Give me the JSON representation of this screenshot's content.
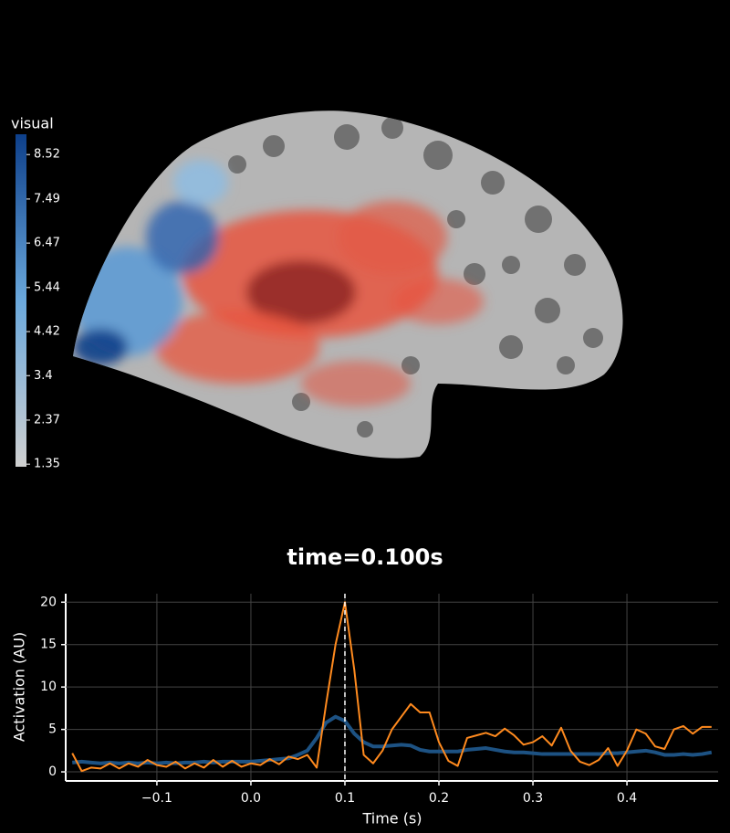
{
  "chart_data": [
    {
      "type": "colorbar",
      "label": "visual",
      "ylim": [
        1.29,
        8.99
      ],
      "yticks": [
        1.35,
        2.37,
        3.4,
        4.42,
        5.44,
        6.47,
        7.49,
        8.52
      ],
      "colors": [
        "#d0d0d0",
        "#6aa8dc",
        "#0d3f8a"
      ]
    },
    {
      "type": "line",
      "title": "time=0.100s",
      "x_label": "Time (s)",
      "y_label": "Activation (AU)",
      "x": [
        -0.19,
        -0.18,
        -0.17,
        -0.16,
        -0.15,
        -0.14,
        -0.13,
        -0.12,
        -0.11,
        -0.1,
        -0.09,
        -0.08,
        -0.07,
        -0.06,
        -0.05,
        -0.04,
        -0.03,
        -0.02,
        -0.01,
        0,
        0.01,
        0.02,
        0.03,
        0.04,
        0.05,
        0.06,
        0.07,
        0.08,
        0.09,
        0.1,
        0.11,
        0.12,
        0.13,
        0.14,
        0.15,
        0.16,
        0.17,
        0.18,
        0.19,
        0.2,
        0.21,
        0.22,
        0.23,
        0.24,
        0.25,
        0.26,
        0.27,
        0.28,
        0.29,
        0.3,
        0.31,
        0.32,
        0.33,
        0.34,
        0.35,
        0.36,
        0.37,
        0.38,
        0.39,
        0.4,
        0.41,
        0.42,
        0.43,
        0.44,
        0.45,
        0.46,
        0.47,
        0.48,
        0.49
      ],
      "series": [
        {
          "color": "#1d5283",
          "width": 4,
          "values": [
            1.1,
            1.2,
            1.1,
            1.0,
            1.1,
            1.0,
            1.1,
            1.0,
            1.1,
            1.0,
            1.1,
            1.0,
            1.1,
            1.1,
            1.2,
            1.1,
            1.2,
            1.2,
            1.2,
            1.2,
            1.3,
            1.4,
            1.5,
            1.6,
            2.0,
            2.5,
            4.0,
            5.8,
            6.5,
            6.0,
            4.5,
            3.5,
            3.0,
            3.0,
            3.1,
            3.2,
            3.1,
            2.6,
            2.4,
            2.4,
            2.4,
            2.4,
            2.6,
            2.7,
            2.8,
            2.6,
            2.4,
            2.3,
            2.3,
            2.2,
            2.1,
            2.1,
            2.1,
            2.1,
            2.1,
            2.1,
            2.1,
            2.2,
            2.2,
            2.3,
            2.4,
            2.5,
            2.3,
            2.0,
            2.0,
            2.1,
            2.0,
            2.1,
            2.3
          ]
        },
        {
          "color": "#ff8a1e",
          "width": 2,
          "values": [
            2.2,
            0.1,
            0.5,
            0.4,
            1.0,
            0.4,
            1.0,
            0.6,
            1.4,
            0.8,
            0.6,
            1.2,
            0.4,
            1.0,
            0.5,
            1.4,
            0.6,
            1.3,
            0.6,
            1.0,
            0.8,
            1.5,
            0.9,
            1.8,
            1.5,
            2.0,
            0.5,
            8.0,
            15.0,
            20.0,
            12.0,
            2.0,
            1.0,
            2.5,
            5.0,
            6.5,
            8.0,
            7.0,
            7.0,
            3.5,
            1.3,
            0.7,
            4.0,
            4.3,
            4.6,
            4.2,
            5.1,
            4.3,
            3.2,
            3.5,
            4.2,
            3.1,
            5.2,
            2.5,
            1.2,
            0.8,
            1.4,
            2.8,
            0.7,
            2.5,
            5.0,
            4.5,
            3.0,
            2.7,
            5.0,
            5.4,
            4.5,
            5.3,
            5.3
          ]
        }
      ],
      "time_line": 0.1,
      "xlim": [
        -0.197,
        0.497
      ],
      "xticks": [
        {
          "value": -0.1,
          "label": "−0.1"
        },
        {
          "value": 0,
          "label": "0.0"
        },
        0.1,
        0.2,
        0.3,
        0.4
      ],
      "ylim": [
        -1.07,
        21
      ],
      "yticks": [
        0,
        5,
        10,
        15,
        20
      ],
      "grid": true
    }
  ]
}
